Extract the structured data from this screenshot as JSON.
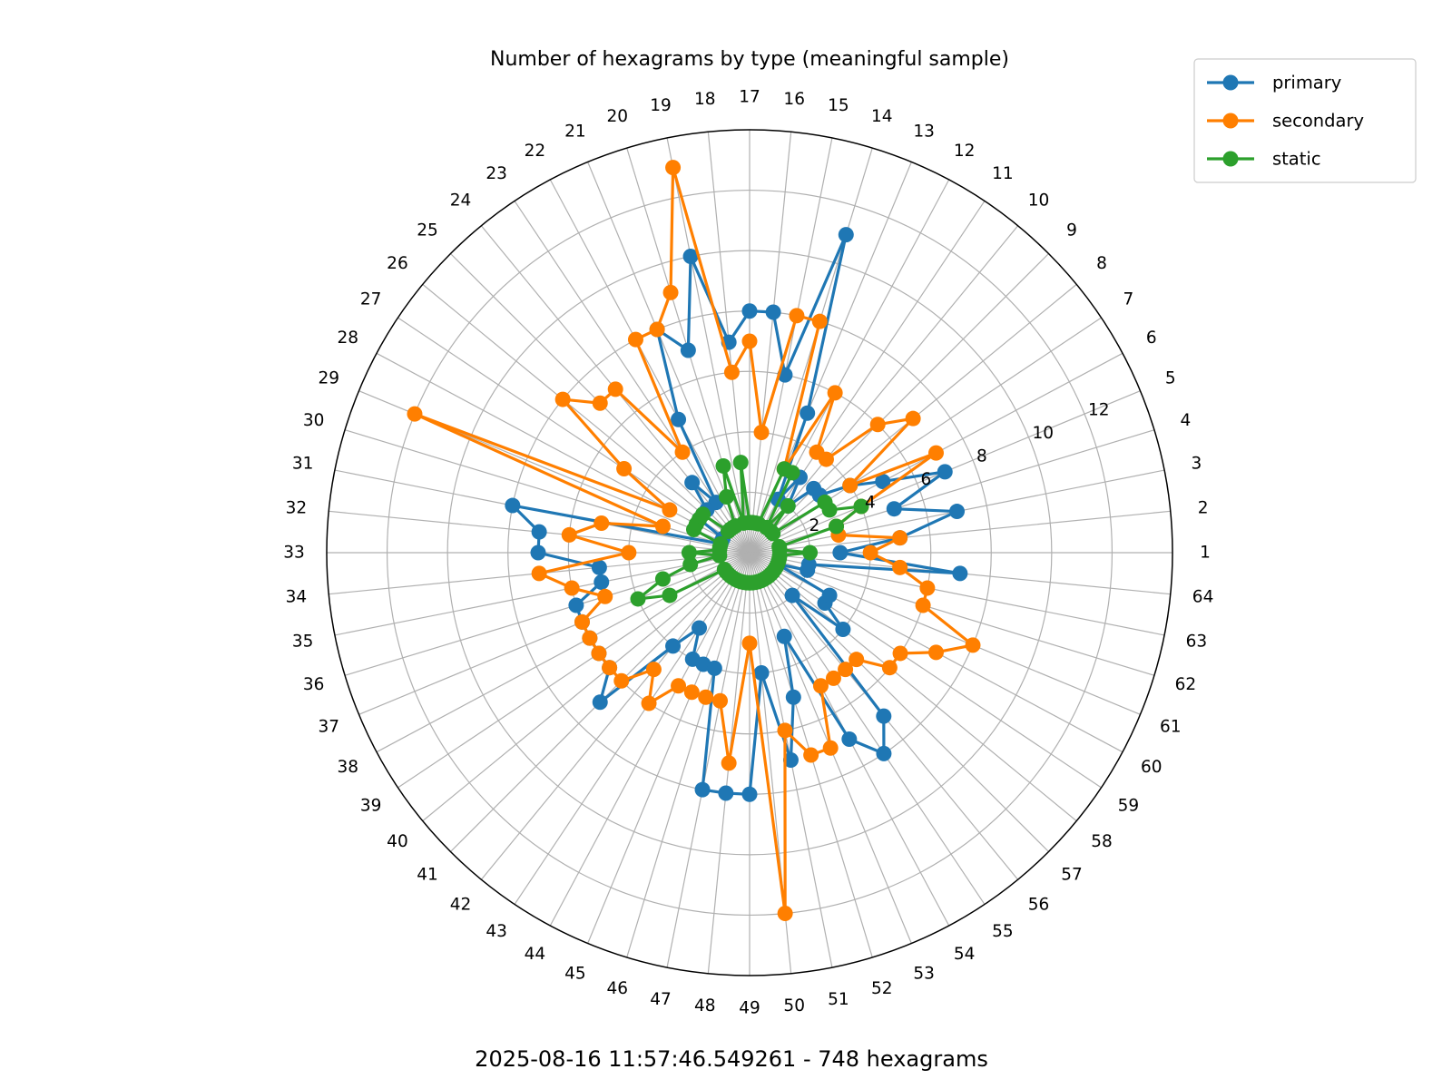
{
  "chart_data": {
    "type": "line",
    "projection": "polar",
    "title": "Number of hexagrams by type (meaningful sample)",
    "caption": "2025-08-16 11:57:46.549261 - 748 hexagrams",
    "categories": [
      "1",
      "2",
      "3",
      "4",
      "5",
      "6",
      "7",
      "8",
      "9",
      "10",
      "11",
      "12",
      "13",
      "14",
      "15",
      "16",
      "17",
      "18",
      "19",
      "20",
      "21",
      "22",
      "23",
      "24",
      "25",
      "26",
      "27",
      "28",
      "29",
      "30",
      "31",
      "32",
      "33",
      "34",
      "35",
      "36",
      "37",
      "38",
      "39",
      "40",
      "41",
      "42",
      "43",
      "44",
      "45",
      "46",
      "47",
      "48",
      "49",
      "50",
      "51",
      "52",
      "53",
      "54",
      "55",
      "56",
      "57",
      "58",
      "59",
      "60",
      "61",
      "62",
      "63",
      "64"
    ],
    "rlim": [
      0,
      14
    ],
    "rticks": [
      2,
      4,
      6,
      8,
      10,
      12
    ],
    "rtick_labels": [
      "2",
      "4",
      "6",
      "8",
      "10",
      "12"
    ],
    "grid": true,
    "legend_position": "top-right",
    "series": [
      {
        "name": "primary",
        "color": "#1f77b4",
        "values": [
          3,
          5,
          7,
          5,
          7,
          5,
          4,
          3,
          3,
          2,
          3,
          2,
          5,
          11,
          6,
          8,
          8,
          7,
          10,
          7,
          8,
          5,
          2,
          3,
          2,
          2,
          2,
          1,
          1,
          1,
          8,
          7,
          7,
          5,
          5,
          6,
          6,
          6,
          6,
          6,
          7,
          4,
          3,
          4,
          4,
          4,
          8,
          8,
          8,
          4,
          7,
          5,
          3,
          7,
          8,
          7,
          2,
          4,
          3,
          3,
          1,
          2,
          2,
          7
        ]
      },
      {
        "name": "secondary",
        "color": "#ff7f00",
        "values": [
          4,
          5,
          3,
          3,
          4,
          7,
          4,
          7,
          6,
          4,
          4,
          6,
          3,
          8,
          8,
          4,
          7,
          6,
          13,
          9,
          8,
          8,
          4,
          7,
          7,
          8,
          5,
          3,
          12,
          3,
          5,
          6,
          4,
          7,
          6,
          5,
          6,
          6,
          6,
          6,
          6,
          5,
          6,
          5,
          5,
          5,
          5,
          7,
          3,
          12,
          6,
          7,
          7,
          5,
          5,
          5,
          5,
          6,
          6,
          7,
          8,
          6,
          6,
          5
        ]
      },
      {
        "name": "static",
        "color": "#2ca02c",
        "values": [
          2,
          1,
          1,
          3,
          4,
          3,
          3,
          1,
          1,
          2,
          1,
          3,
          3,
          1,
          1,
          1,
          1,
          3,
          1,
          3,
          2,
          1,
          1,
          1,
          1,
          2,
          2,
          2,
          2,
          1,
          1,
          1,
          2,
          1,
          2,
          3,
          4,
          3,
          1,
          1,
          1,
          1,
          1,
          1,
          1,
          1,
          1,
          1,
          1,
          1,
          1,
          1,
          1,
          1,
          1,
          1,
          1,
          1,
          1,
          1,
          1,
          1,
          1,
          1
        ]
      }
    ]
  }
}
